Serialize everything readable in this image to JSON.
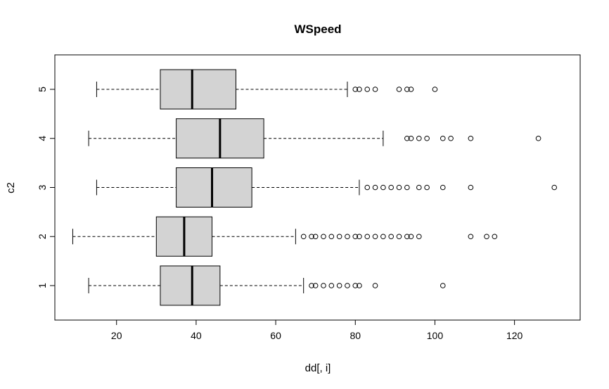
{
  "chart_data": {
    "type": "boxplot",
    "orientation": "horizontal",
    "title": "WSpeed",
    "xlabel": "dd[, i]",
    "ylabel": "c2",
    "xlim": [
      4.5,
      136.5
    ],
    "x_ticks": [
      20,
      40,
      60,
      80,
      100,
      120
    ],
    "colors": {
      "box_fill": "#d3d3d3",
      "stroke": "#000000"
    },
    "categories": [
      "1",
      "2",
      "3",
      "4",
      "5"
    ],
    "boxes": [
      {
        "category": "1",
        "whisker_low": 13,
        "q1": 31,
        "median": 39,
        "q3": 46,
        "whisker_high": 67,
        "outliers": [
          69,
          70,
          72,
          74,
          76,
          78,
          80,
          81,
          85,
          102
        ]
      },
      {
        "category": "2",
        "whisker_low": 9,
        "q1": 30,
        "median": 37,
        "q3": 44,
        "whisker_high": 65,
        "outliers": [
          67,
          69,
          70,
          72,
          74,
          76,
          78,
          80,
          81,
          83,
          85,
          87,
          89,
          91,
          93,
          94,
          96,
          109,
          113,
          115
        ]
      },
      {
        "category": "3",
        "whisker_low": 15,
        "q1": 35,
        "median": 44,
        "q3": 54,
        "whisker_high": 81,
        "outliers": [
          83,
          85,
          87,
          89,
          91,
          93,
          96,
          98,
          102,
          109,
          130
        ]
      },
      {
        "category": "4",
        "whisker_low": 13,
        "q1": 35,
        "median": 46,
        "q3": 57,
        "whisker_high": 87,
        "outliers": [
          93,
          94,
          96,
          98,
          102,
          104,
          109,
          126
        ]
      },
      {
        "category": "5",
        "whisker_low": 15,
        "q1": 31,
        "median": 39,
        "q3": 50,
        "whisker_high": 78,
        "outliers": [
          80,
          81,
          83,
          85,
          91,
          93,
          94,
          100
        ]
      }
    ]
  }
}
